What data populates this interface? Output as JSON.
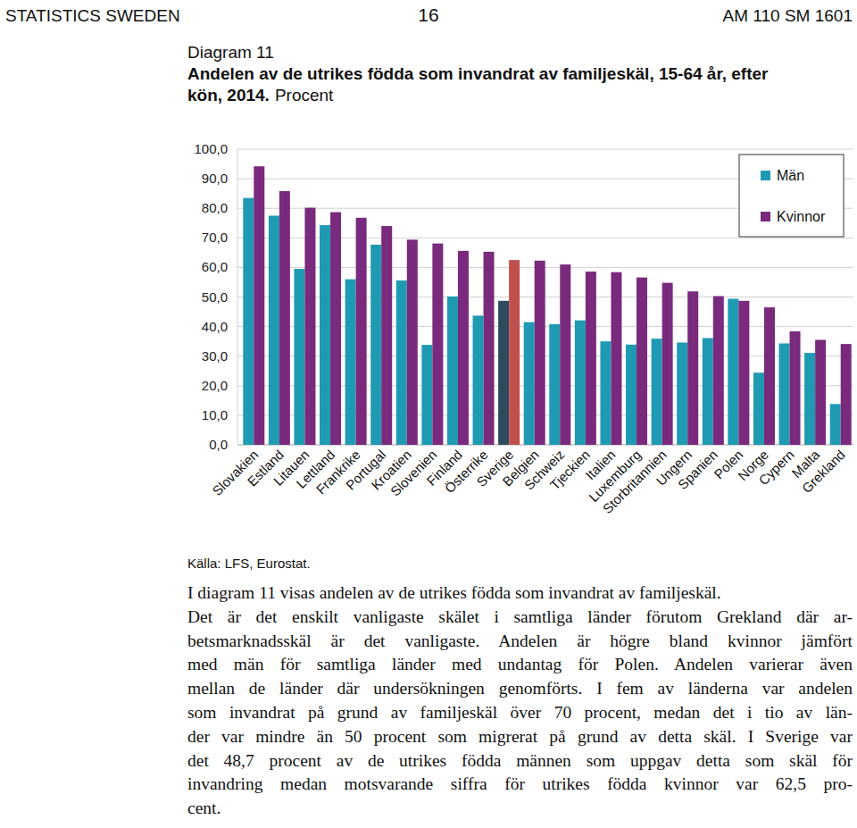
{
  "header": {
    "left": "STATISTICS SWEDEN",
    "center": "16",
    "right": "AM 110 SM 1601"
  },
  "chart_data": {
    "type": "bar",
    "title": "Diagram 11",
    "subtitle": [
      "Andelen av de utrikes födda som invandrat av familjeskäl, 15-64 år, efter",
      "kön, 2014."
    ],
    "ylabel": "Procent",
    "categories": [
      "Slovakien",
      "Estland",
      "Litauen",
      "Lettland",
      "Frankrike",
      "Portugal",
      "Kroatien",
      "Slovenien",
      "Finland",
      "Österrike",
      "Sverige",
      "Belgien",
      "Schweiz",
      "Tjeckien",
      "Italien",
      "Luxemburg",
      "Storbritannien",
      "Ungern",
      "Spanien",
      "Polen",
      "Norge",
      "Cypern",
      "Malta",
      "Grekland"
    ],
    "series": [
      {
        "name": "Män",
        "color": "#1f9ab3",
        "colors": [
          "#1f9ab3",
          "#1f9ab3",
          "#1f9ab3",
          "#1f9ab3",
          "#1f9ab3",
          "#1f9ab3",
          "#1f9ab3",
          "#1f9ab3",
          "#1f9ab3",
          "#1f9ab3",
          "#2c4a5b",
          "#1f9ab3",
          "#1f9ab3",
          "#1f9ab3",
          "#1f9ab3",
          "#1f9ab3",
          "#1f9ab3",
          "#1f9ab3",
          "#1f9ab3",
          "#1f9ab3",
          "#1f9ab3",
          "#1f9ab3",
          "#1f9ab3",
          "#1f9ab3"
        ],
        "values": [
          83.5,
          77.5,
          59.5,
          74.3,
          56.0,
          67.7,
          55.6,
          33.8,
          50.2,
          43.7,
          48.7,
          41.5,
          40.8,
          42.1,
          35.0,
          33.9,
          35.9,
          34.6,
          36.1,
          49.4,
          24.4,
          34.3,
          31.1,
          13.8
        ]
      },
      {
        "name": "Kvinnor",
        "color": "#7a2a7d",
        "colors": [
          "#7a2a7d",
          "#7a2a7d",
          "#7a2a7d",
          "#7a2a7d",
          "#7a2a7d",
          "#7a2a7d",
          "#7a2a7d",
          "#7a2a7d",
          "#7a2a7d",
          "#7a2a7d",
          "#c0504d",
          "#7a2a7d",
          "#7a2a7d",
          "#7a2a7d",
          "#7a2a7d",
          "#7a2a7d",
          "#7a2a7d",
          "#7a2a7d",
          "#7a2a7d",
          "#7a2a7d",
          "#7a2a7d",
          "#7a2a7d",
          "#7a2a7d",
          "#7a2a7d"
        ],
        "values": [
          94.2,
          85.8,
          80.2,
          78.7,
          76.8,
          74.0,
          69.4,
          68.1,
          65.6,
          65.3,
          62.5,
          62.3,
          61.0,
          58.6,
          58.4,
          56.6,
          54.8,
          51.9,
          50.3,
          48.7,
          46.5,
          38.4,
          35.5,
          34.1
        ]
      }
    ],
    "ylim": [
      0,
      100
    ],
    "yticks": [
      {
        "value": 0,
        "label": "0,0"
      },
      {
        "value": 10,
        "label": "10,0"
      },
      {
        "value": 20,
        "label": "20,0"
      },
      {
        "value": 30,
        "label": "30,0"
      },
      {
        "value": 40,
        "label": "40,0"
      },
      {
        "value": 50,
        "label": "50,0"
      },
      {
        "value": 60,
        "label": "60,0"
      },
      {
        "value": 70,
        "label": "70,0"
      },
      {
        "value": 80,
        "label": "80,0"
      },
      {
        "value": 90,
        "label": "90,0"
      },
      {
        "value": 100,
        "label": "100,0"
      }
    ],
    "grid": true,
    "legend": "top-right"
  },
  "source": "Källa: LFS, Eurostat.",
  "body": [
    [
      "I diagram 11 visas andelen av de utrikes födda som invandrat av familjeskäl."
    ],
    [
      "Det är det enskilt vanligaste skälet i samtliga länder förutom Grekland där ar-",
      "betsmarknadsskäl är det vanligaste. Andelen är högre bland kvinnor jämfört",
      "med män för samtliga länder med undantag för Polen. Andelen varierar även",
      "mellan de länder där undersökningen genomförts. I fem av länderna var andelen",
      "som invandrat på grund av familjeskäl över 70 procent, medan det i tio av län-",
      "der var mindre än 50 procent som migrerat på grund av detta skäl. I Sverige var",
      "det 48,7 procent av de utrikes födda männen som uppgav detta som skäl för",
      "invandring medan motsvarande siffra för utrikes födda kvinnor var 62,5 pro-",
      "cent."
    ]
  ]
}
